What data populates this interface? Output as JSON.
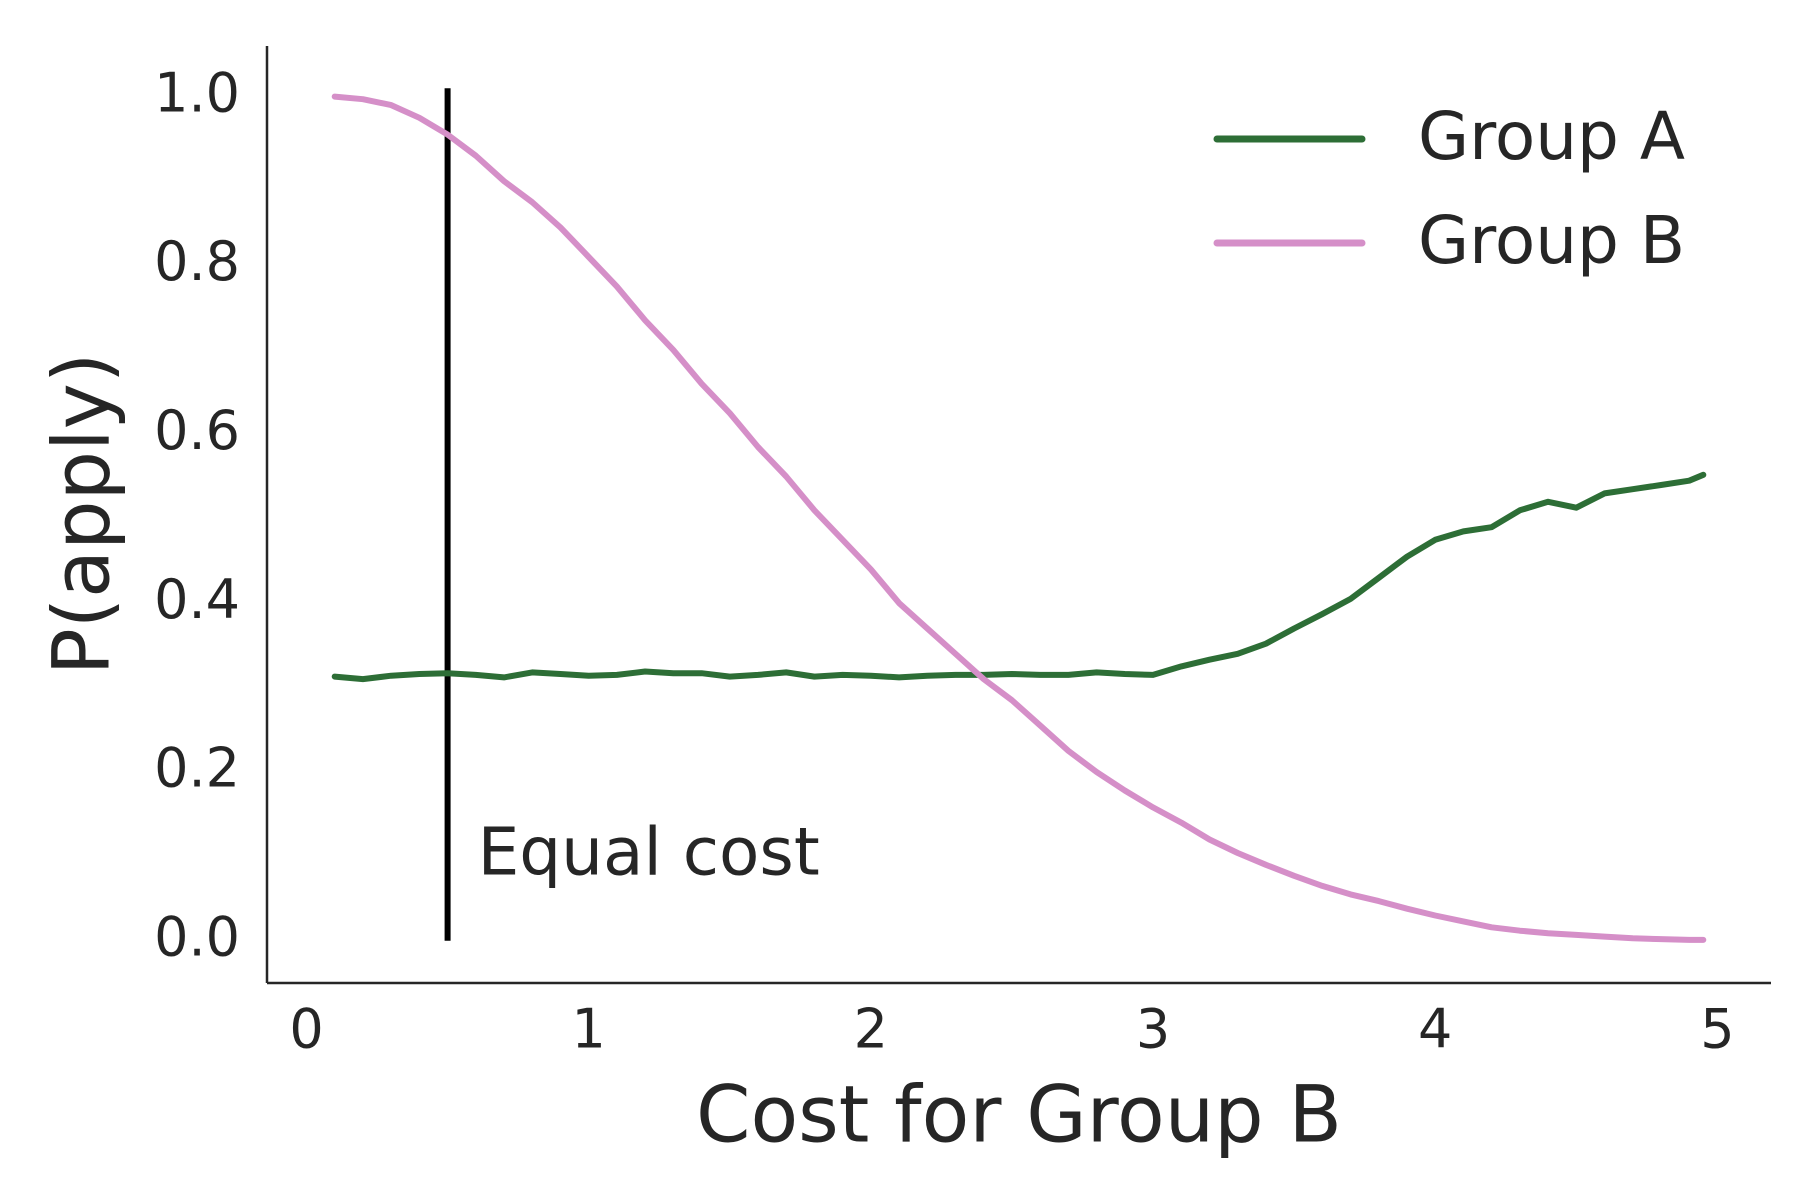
{
  "chart_data": {
    "type": "line",
    "x_label": "Cost for Group B",
    "y_label": "P(apply)",
    "x": [
      0.1,
      0.2,
      0.3,
      0.4,
      0.5,
      0.6,
      0.7,
      0.8,
      0.9,
      1.0,
      1.1,
      1.2,
      1.3,
      1.4,
      1.5,
      1.6,
      1.7,
      1.8,
      1.9,
      2.0,
      2.1,
      2.2,
      2.3,
      2.4,
      2.5,
      2.6,
      2.7,
      2.8,
      2.9,
      3.0,
      3.1,
      3.2,
      3.3,
      3.4,
      3.5,
      3.6,
      3.7,
      3.8,
      3.9,
      4.0,
      4.1,
      4.2,
      4.3,
      4.4,
      4.5,
      4.6,
      4.7,
      4.8,
      4.9,
      4.95
    ],
    "series": [
      {
        "name": "Group A",
        "color": "#2d6e36",
        "values": [
          0.313,
          0.31,
          0.314,
          0.316,
          0.317,
          0.315,
          0.312,
          0.318,
          0.316,
          0.314,
          0.315,
          0.319,
          0.317,
          0.317,
          0.313,
          0.315,
          0.318,
          0.313,
          0.315,
          0.314,
          0.312,
          0.314,
          0.315,
          0.315,
          0.316,
          0.315,
          0.315,
          0.318,
          0.316,
          0.315,
          0.325,
          0.333,
          0.34,
          0.352,
          0.37,
          0.387,
          0.405,
          0.43,
          0.455,
          0.475,
          0.485,
          0.49,
          0.51,
          0.52,
          0.513,
          0.53,
          0.535,
          0.54,
          0.545,
          0.552
        ]
      },
      {
        "name": "Group B",
        "color": "#d58fc8",
        "values": [
          1.0,
          0.997,
          0.99,
          0.975,
          0.955,
          0.93,
          0.9,
          0.875,
          0.845,
          0.81,
          0.775,
          0.735,
          0.7,
          0.66,
          0.625,
          0.585,
          0.55,
          0.51,
          0.475,
          0.44,
          0.4,
          0.37,
          0.34,
          0.31,
          0.285,
          0.255,
          0.225,
          0.2,
          0.178,
          0.158,
          0.14,
          0.12,
          0.104,
          0.09,
          0.077,
          0.065,
          0.055,
          0.047,
          0.038,
          0.03,
          0.023,
          0.016,
          0.012,
          0.009,
          0.007,
          0.005,
          0.003,
          0.002,
          0.001,
          0.001
        ]
      }
    ],
    "vline_x": 0.5,
    "vline_range": [
      0,
      1.01
    ],
    "annotation": "Equal cost",
    "xlim": [
      -0.14,
      5.19
    ],
    "ylim": [
      -0.05,
      1.06
    ],
    "xticks": [
      0,
      1,
      2,
      3,
      4,
      5
    ],
    "yticks": [
      {
        "value": 0,
        "label": "0.0"
      },
      {
        "value": 0.2,
        "label": "0.2"
      },
      {
        "value": 0.4,
        "label": "0.4"
      },
      {
        "value": 0.6,
        "label": "0.6"
      },
      {
        "value": 0.8,
        "label": "0.8"
      },
      {
        "value": 1,
        "label": "1.0"
      }
    ],
    "legend": "upper right"
  }
}
